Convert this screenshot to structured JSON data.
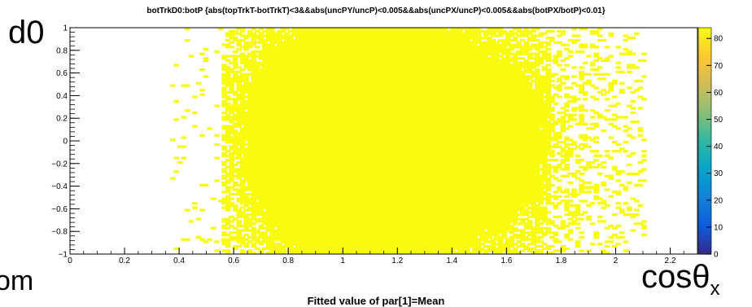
{
  "title": "botTrkD0:botP {abs(topTrkT-botTrkT)<3&&abs(uncPY/uncP)<0.005&&abs(uncPX/uncP)<0.005&&abs(botPX/botP)<0.01}",
  "overlay": {
    "ylabel": "d0",
    "xlabel_main": "cos",
    "xlabel_greek": "θ",
    "xlabel_sub": "x",
    "clipped_left": "om"
  },
  "caption": "Fitted value of par[1]=Mean",
  "chart_data": {
    "type": "heatmap",
    "title": "botTrkD0:botP {abs(topTrkT-botTrkT)<3&&abs(uncPY/uncP)<0.005&&abs(uncPX/uncP)<0.005&&abs(botPX/botP)<0.01}",
    "xlim": [
      0,
      2.3
    ],
    "ylim": [
      -1,
      1
    ],
    "zlim": [
      0,
      80
    ],
    "x_ticks": [
      0,
      0.2,
      0.4,
      0.6,
      0.8,
      1,
      1.2,
      1.4,
      1.6,
      1.8,
      2,
      2.2
    ],
    "x_tick_labels": [
      "0",
      "0.2",
      "0.4",
      "0.6",
      "0.8",
      "1",
      "1.2",
      "1.4",
      "1.6",
      "1.8",
      "2",
      "2.2"
    ],
    "y_ticks": [
      -1,
      -0.8,
      -0.6,
      -0.4,
      -0.2,
      0,
      0.2,
      0.4,
      0.6,
      0.8,
      1
    ],
    "y_tick_labels": [
      "−1",
      "−0.8",
      "−0.6",
      "−0.4",
      "−0.2",
      "0",
      "0.2",
      "0.4",
      "0.6",
      "0.8",
      "1"
    ],
    "z_ticks": [
      0,
      10,
      20,
      30,
      40,
      50,
      60,
      70,
      80
    ],
    "z_tick_labels": [
      "0",
      "10",
      "20",
      "30",
      "40",
      "50",
      "60",
      "70",
      "80"
    ],
    "peak": {
      "x": 1.0,
      "y": 0.0,
      "z": 78
    },
    "spread": {
      "x_core": 0.22,
      "y_core": 0.55
    },
    "x_extent": [
      0.38,
      2.1
    ],
    "colormap": [
      "#352a87",
      "#0f5cdd",
      "#1481d6",
      "#06a4ca",
      "#2eb7a4",
      "#87bf77",
      "#d1bb59",
      "#fec832",
      "#f9fb0e"
    ],
    "grid": false
  }
}
